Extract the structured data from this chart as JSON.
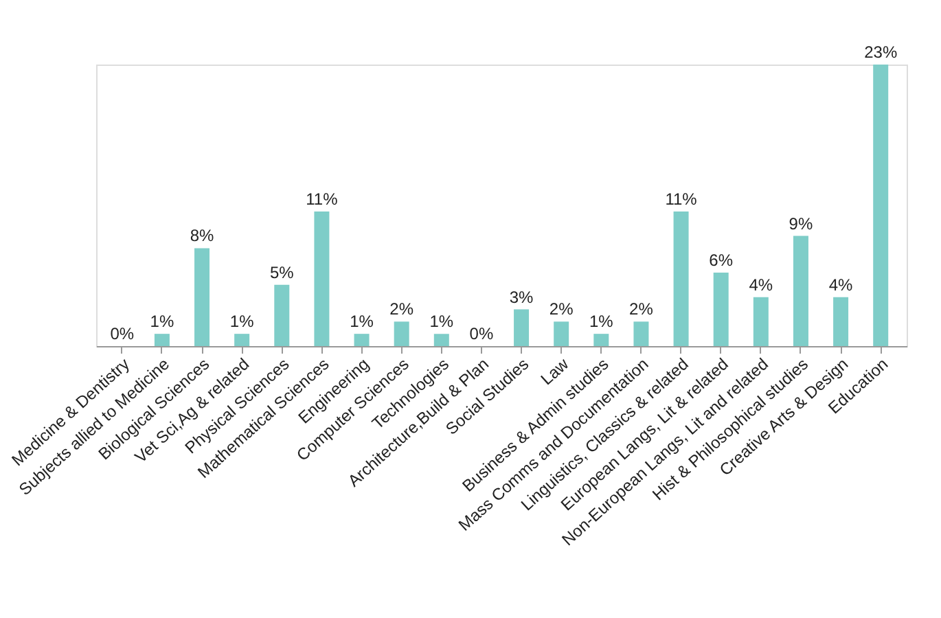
{
  "chart_data": {
    "type": "bar",
    "categories": [
      "Medicine & Dentistry",
      "Subjects allied to Medicine",
      "Biological Sciences",
      "Vet Sci,Ag & related",
      "Physical Sciences",
      "Mathematical Sciences",
      "Engineering",
      "Computer Sciences",
      "Technologies",
      "Architecture,Build & Plan",
      "Social Studies",
      "Law",
      "Business & Admin studies",
      "Mass Comms and Documentation",
      "Linguistics, Classics & related",
      "European Langs, Lit & related",
      "Non-European Langs, Lit and related",
      "Hist & Philosophical studies",
      "Creative Arts & Design",
      "Education"
    ],
    "values": [
      0,
      1,
      8,
      1,
      5,
      11,
      1,
      2,
      1,
      0,
      3,
      2,
      1,
      2,
      11,
      6,
      4,
      9,
      4,
      23
    ],
    "value_labels": [
      "0%",
      "1%",
      "8%",
      "1%",
      "5%",
      "11%",
      "1%",
      "2%",
      "1%",
      "0%",
      "3%",
      "2%",
      "1%",
      "2%",
      "11%",
      "6%",
      "4%",
      "9%",
      "4%",
      "23%"
    ],
    "color": "#7ecdc8"
  }
}
